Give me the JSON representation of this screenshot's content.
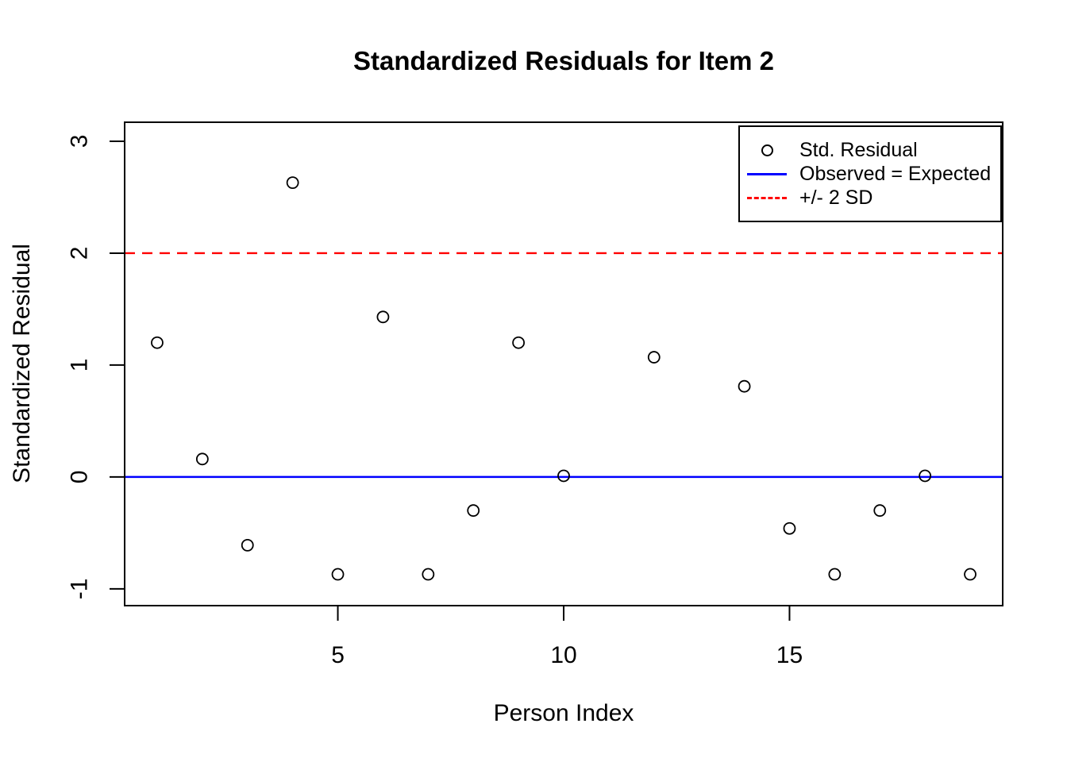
{
  "chart_data": {
    "type": "scatter",
    "title": "Standardized Residuals for Item 2",
    "xlabel": "Person Index",
    "ylabel": "Standardized Residual",
    "x_ticks": [
      5,
      10,
      15
    ],
    "y_ticks": [
      -1,
      0,
      1,
      2,
      3
    ],
    "xlim": [
      0.28,
      19.72
    ],
    "ylim": [
      -1.15,
      3.17
    ],
    "grid": false,
    "background": "#ffffff",
    "point_symbol": "open-circle",
    "point_color": "#000000",
    "points": [
      {
        "x": 1,
        "y": 1.2
      },
      {
        "x": 2,
        "y": 0.16
      },
      {
        "x": 3,
        "y": -0.61
      },
      {
        "x": 4,
        "y": 2.63
      },
      {
        "x": 5,
        "y": -0.87
      },
      {
        "x": 6,
        "y": 1.43
      },
      {
        "x": 7,
        "y": -0.87
      },
      {
        "x": 8,
        "y": -0.3
      },
      {
        "x": 9,
        "y": 1.2
      },
      {
        "x": 10,
        "y": 0.01
      },
      {
        "x": 12,
        "y": 1.07
      },
      {
        "x": 14,
        "y": 0.81
      },
      {
        "x": 15,
        "y": -0.46
      },
      {
        "x": 16,
        "y": -0.87
      },
      {
        "x": 17,
        "y": -0.3
      },
      {
        "x": 18,
        "y": 0.01
      },
      {
        "x": 19,
        "y": -0.87
      }
    ],
    "hlines": [
      {
        "y": 0,
        "color": "#0000ff",
        "style": "solid",
        "label": "Observed = Expected"
      },
      {
        "y": 2,
        "color": "#ff0000",
        "style": "dashed",
        "label": "+/- 2 SD"
      }
    ],
    "legend": {
      "position": "top-right",
      "entries": [
        {
          "symbol": "open-circle",
          "color": "#000000",
          "label": "Std. Residual"
        },
        {
          "symbol": "solid-line",
          "color": "#0000ff",
          "label": "Observed = Expected"
        },
        {
          "symbol": "dashed-line",
          "color": "#ff0000",
          "label": "+/- 2 SD"
        }
      ]
    }
  }
}
